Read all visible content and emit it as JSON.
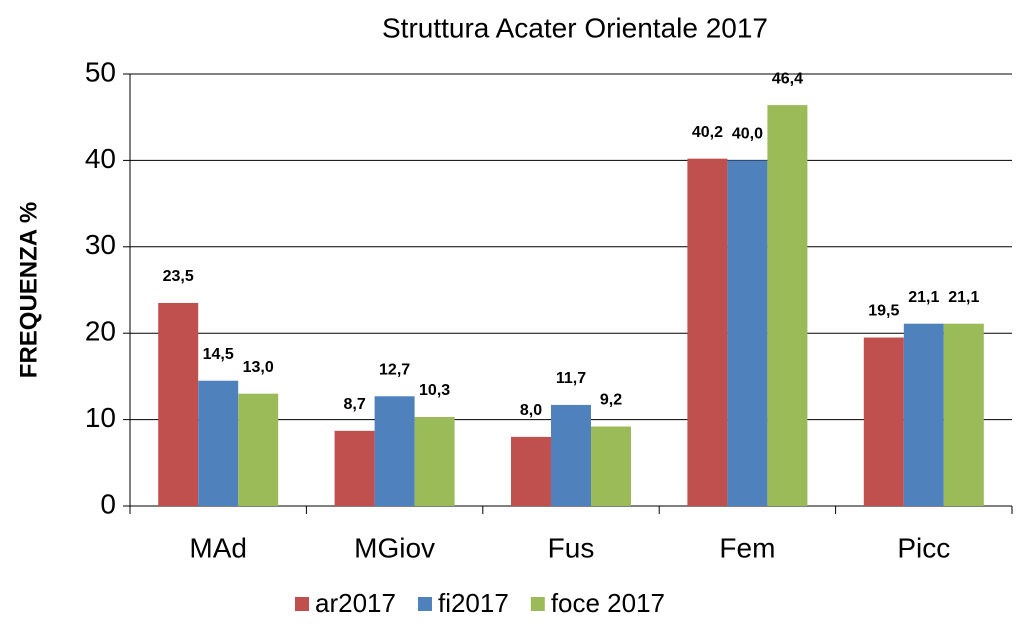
{
  "chart_data": {
    "type": "bar",
    "title": "Struttura Acater Orientale 2017",
    "y_label": "FREQUENZA %",
    "categories": [
      "MAd",
      "MGiov",
      "Fus",
      "Fem",
      "Picc"
    ],
    "series": [
      {
        "name": "ar2017",
        "color": "#c0504d",
        "values": [
          23.5,
          8.7,
          8.0,
          40.2,
          19.5
        ],
        "value_labels": [
          "23,5",
          "8,7",
          "8,0",
          "40,2",
          "19,5"
        ]
      },
      {
        "name": "fi2017",
        "color": "#4f81bd",
        "values": [
          14.5,
          12.7,
          11.7,
          40.0,
          21.1
        ],
        "value_labels": [
          "14,5",
          "12,7",
          "11,7",
          "40,0",
          "21,1"
        ]
      },
      {
        "name": "foce 2017",
        "color": "#9bbb59",
        "values": [
          13.0,
          10.3,
          9.2,
          46.4,
          21.1
        ],
        "value_labels": [
          "13,0",
          "10,3",
          "9,2",
          "46,4",
          "21,1"
        ]
      }
    ],
    "ylim": [
      0,
      50
    ],
    "yticks": [
      0,
      10,
      20,
      30,
      40,
      50
    ],
    "grid": true,
    "legend": "bottom"
  }
}
